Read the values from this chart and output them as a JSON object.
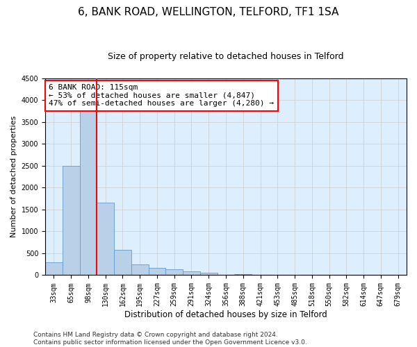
{
  "title": "6, BANK ROAD, WELLINGTON, TELFORD, TF1 1SA",
  "subtitle": "Size of property relative to detached houses in Telford",
  "xlabel": "Distribution of detached houses by size in Telford",
  "ylabel": "Number of detached properties",
  "categories": [
    "33sqm",
    "65sqm",
    "98sqm",
    "130sqm",
    "162sqm",
    "195sqm",
    "227sqm",
    "259sqm",
    "291sqm",
    "324sqm",
    "356sqm",
    "388sqm",
    "421sqm",
    "453sqm",
    "485sqm",
    "518sqm",
    "550sqm",
    "582sqm",
    "614sqm",
    "647sqm",
    "679sqm"
  ],
  "values": [
    300,
    2500,
    3800,
    1650,
    580,
    240,
    170,
    130,
    90,
    50,
    0,
    30,
    0,
    0,
    0,
    0,
    0,
    0,
    0,
    0,
    0
  ],
  "bar_color": "#b8d0e8",
  "bar_edge_color": "#6699cc",
  "vline_x_index": 2,
  "vline_color": "red",
  "annotation_line1": "6 BANK ROAD: 115sqm",
  "annotation_line2": "← 53% of detached houses are smaller (4,847)",
  "annotation_line3": "47% of semi-detached houses are larger (4,280) →",
  "annotation_box_color": "white",
  "annotation_box_edge_color": "red",
  "ylim": [
    0,
    4500
  ],
  "yticks": [
    0,
    500,
    1000,
    1500,
    2000,
    2500,
    3000,
    3500,
    4000,
    4500
  ],
  "grid_color": "#cccccc",
  "bg_color": "#ddeeff",
  "footer_line1": "Contains HM Land Registry data © Crown copyright and database right 2024.",
  "footer_line2": "Contains public sector information licensed under the Open Government Licence v3.0.",
  "title_fontsize": 11,
  "subtitle_fontsize": 9,
  "xlabel_fontsize": 8.5,
  "ylabel_fontsize": 8,
  "tick_fontsize": 7,
  "annotation_fontsize": 8,
  "footer_fontsize": 6.5
}
